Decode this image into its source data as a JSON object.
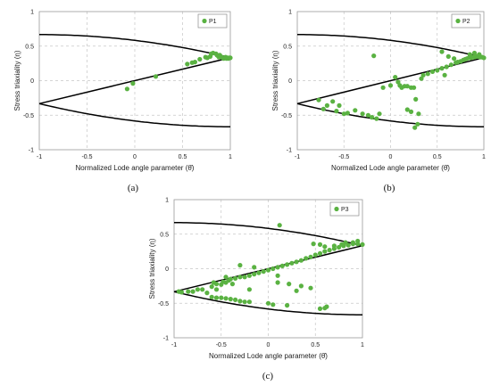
{
  "colors": {
    "marker": "#5ab242",
    "boundary": "#000000",
    "grid": "#c6c6c6",
    "frame": "#9a9a9a"
  },
  "chart_data": [
    {
      "type": "scatter",
      "caption": "(a)",
      "xlabel": "Normalized Lode angle parameter (θ̄)",
      "ylabel": "Stress triaxiality (η)",
      "xlim": [
        -1,
        1
      ],
      "ylim": [
        -1,
        1
      ],
      "xticks": [
        "-1",
        "-0.5",
        "0",
        "0.5",
        "1"
      ],
      "yticks": [
        "1",
        "0.5",
        "0",
        "-0.5",
        "-1"
      ],
      "grid": "dashed vertical and horizontal",
      "legend_position": "top-right",
      "series": [
        {
          "name": "P1",
          "points": [
            [
              -0.08,
              -0.12
            ],
            [
              -0.02,
              -0.04
            ],
            [
              0.22,
              0.06
            ],
            [
              0.55,
              0.24
            ],
            [
              0.6,
              0.26
            ],
            [
              0.63,
              0.27
            ],
            [
              0.68,
              0.31
            ],
            [
              0.74,
              0.34
            ],
            [
              0.76,
              0.33
            ],
            [
              0.79,
              0.35
            ],
            [
              0.8,
              0.39
            ],
            [
              0.82,
              0.4
            ],
            [
              0.85,
              0.39
            ],
            [
              0.86,
              0.37
            ],
            [
              0.87,
              0.36
            ],
            [
              0.88,
              0.34
            ],
            [
              0.89,
              0.37
            ],
            [
              0.9,
              0.35
            ],
            [
              0.91,
              0.34
            ],
            [
              0.92,
              0.33
            ],
            [
              0.93,
              0.32
            ],
            [
              0.94,
              0.33
            ],
            [
              0.95,
              0.34
            ],
            [
              0.96,
              0.32
            ],
            [
              0.97,
              0.33
            ],
            [
              0.98,
              0.32
            ],
            [
              0.99,
              0.33
            ],
            [
              1.0,
              0.33
            ]
          ]
        }
      ]
    },
    {
      "type": "scatter",
      "caption": "(b)",
      "xlabel": "Normalized Lode angle parameter (θ̄)",
      "ylabel": "Stress triaxiality (η)",
      "xlim": [
        -1,
        1
      ],
      "ylim": [
        -1,
        1
      ],
      "xticks": [
        "-1",
        "-0.5",
        "0",
        "0.5",
        "1"
      ],
      "yticks": [
        "1",
        "0.5",
        "0",
        "-0.5",
        "-1"
      ],
      "grid": "dashed vertical and horizontal",
      "legend_position": "top-right",
      "series": [
        {
          "name": "P2",
          "points": [
            [
              -0.77,
              -0.28
            ],
            [
              -0.72,
              -0.41
            ],
            [
              -0.68,
              -0.36
            ],
            [
              -0.62,
              -0.3
            ],
            [
              -0.58,
              -0.44
            ],
            [
              -0.55,
              -0.36
            ],
            [
              -0.5,
              -0.48
            ],
            [
              -0.46,
              -0.47
            ],
            [
              -0.38,
              -0.43
            ],
            [
              -0.3,
              -0.48
            ],
            [
              -0.24,
              -0.5
            ],
            [
              -0.2,
              -0.53
            ],
            [
              -0.15,
              -0.55
            ],
            [
              -0.12,
              -0.48
            ],
            [
              -0.18,
              0.36
            ],
            [
              -0.08,
              -0.1
            ],
            [
              0.0,
              -0.07
            ],
            [
              0.05,
              0.05
            ],
            [
              0.08,
              -0.02
            ],
            [
              0.1,
              -0.07
            ],
            [
              0.12,
              -0.1
            ],
            [
              0.15,
              -0.08
            ],
            [
              0.18,
              -0.08
            ],
            [
              0.22,
              -0.1
            ],
            [
              0.25,
              -0.1
            ],
            [
              0.27,
              -0.27
            ],
            [
              0.3,
              -0.48
            ],
            [
              0.26,
              -0.68
            ],
            [
              0.29,
              -0.63
            ],
            [
              0.33,
              0.03
            ],
            [
              0.22,
              -0.45
            ],
            [
              0.18,
              -0.42
            ],
            [
              0.35,
              0.08
            ],
            [
              0.4,
              0.1
            ],
            [
              0.45,
              0.13
            ],
            [
              0.5,
              0.15
            ],
            [
              0.55,
              0.18
            ],
            [
              0.6,
              0.2
            ],
            [
              0.65,
              0.23
            ],
            [
              0.7,
              0.26
            ],
            [
              0.72,
              0.27
            ],
            [
              0.75,
              0.28
            ],
            [
              0.78,
              0.3
            ],
            [
              0.8,
              0.31
            ],
            [
              0.82,
              0.32
            ],
            [
              0.84,
              0.33
            ],
            [
              0.86,
              0.33
            ],
            [
              0.88,
              0.34
            ],
            [
              0.9,
              0.34
            ],
            [
              0.92,
              0.35
            ],
            [
              0.94,
              0.35
            ],
            [
              0.96,
              0.34
            ],
            [
              0.98,
              0.34
            ],
            [
              1.0,
              0.33
            ],
            [
              0.85,
              0.38
            ],
            [
              0.9,
              0.4
            ],
            [
              0.95,
              0.38
            ],
            [
              0.62,
              0.35
            ],
            [
              0.68,
              0.32
            ],
            [
              0.55,
              0.42
            ],
            [
              0.58,
              0.08
            ]
          ]
        }
      ]
    },
    {
      "type": "scatter",
      "caption": "(c)",
      "xlabel": "Normalized Lode angle parameter (θ̄)",
      "ylabel": "Stress triaxiality (η)",
      "xlim": [
        -1,
        1
      ],
      "ylim": [
        -1,
        1
      ],
      "xticks": [
        "-1",
        "-0.5",
        "0",
        "0.5",
        "1"
      ],
      "yticks": [
        "1",
        "0.5",
        "0",
        "-0.5",
        "-1"
      ],
      "grid": "dashed vertical and horizontal",
      "legend_position": "top-right",
      "series": [
        {
          "name": "P3",
          "points": [
            [
              -0.95,
              -0.33
            ],
            [
              -0.92,
              -0.34
            ],
            [
              -0.85,
              -0.33
            ],
            [
              -0.8,
              -0.33
            ],
            [
              -0.75,
              -0.3
            ],
            [
              -0.7,
              -0.3
            ],
            [
              -0.65,
              -0.35
            ],
            [
              -0.6,
              -0.41
            ],
            [
              -0.55,
              -0.42
            ],
            [
              -0.5,
              -0.42
            ],
            [
              -0.45,
              -0.43
            ],
            [
              -0.4,
              -0.44
            ],
            [
              -0.35,
              -0.45
            ],
            [
              -0.3,
              -0.47
            ],
            [
              -0.25,
              -0.48
            ],
            [
              -0.2,
              -0.48
            ],
            [
              -0.58,
              -0.2
            ],
            [
              -0.55,
              -0.22
            ],
            [
              -0.5,
              -0.23
            ],
            [
              -0.48,
              -0.19
            ],
            [
              -0.45,
              -0.2
            ],
            [
              -0.42,
              -0.17
            ],
            [
              -0.4,
              -0.15
            ],
            [
              -0.35,
              -0.14
            ],
            [
              -0.3,
              -0.12
            ],
            [
              -0.25,
              -0.12
            ],
            [
              -0.2,
              -0.1
            ],
            [
              -0.15,
              -0.08
            ],
            [
              -0.1,
              -0.06
            ],
            [
              -0.05,
              -0.04
            ],
            [
              0.0,
              -0.02
            ],
            [
              0.05,
              0.0
            ],
            [
              0.1,
              0.02
            ],
            [
              0.15,
              0.04
            ],
            [
              0.2,
              0.06
            ],
            [
              0.25,
              0.08
            ],
            [
              0.3,
              0.1
            ],
            [
              0.35,
              0.12
            ],
            [
              0.4,
              0.15
            ],
            [
              0.45,
              0.17
            ],
            [
              0.5,
              0.2
            ],
            [
              0.55,
              0.22
            ],
            [
              0.6,
              0.25
            ],
            [
              0.65,
              0.27
            ],
            [
              0.7,
              0.29
            ],
            [
              0.75,
              0.31
            ],
            [
              0.8,
              0.33
            ],
            [
              0.85,
              0.34
            ],
            [
              0.9,
              0.36
            ],
            [
              0.95,
              0.36
            ],
            [
              1.0,
              0.35
            ],
            [
              0.9,
              0.38
            ],
            [
              0.95,
              0.4
            ],
            [
              0.82,
              0.38
            ],
            [
              0.78,
              0.35
            ],
            [
              0.7,
              0.33
            ],
            [
              0.6,
              0.32
            ],
            [
              0.55,
              0.35
            ],
            [
              0.48,
              0.36
            ],
            [
              0.12,
              0.63
            ],
            [
              -0.6,
              -0.26
            ],
            [
              -0.55,
              -0.3
            ],
            [
              -0.45,
              -0.12
            ],
            [
              -0.38,
              -0.22
            ],
            [
              -0.3,
              0.05
            ],
            [
              -0.15,
              0.02
            ],
            [
              0.1,
              -0.1
            ],
            [
              0.22,
              -0.22
            ],
            [
              0.3,
              -0.32
            ],
            [
              0.35,
              -0.25
            ],
            [
              0.45,
              -0.28
            ],
            [
              0.0,
              -0.5
            ],
            [
              0.05,
              -0.52
            ],
            [
              0.2,
              -0.53
            ],
            [
              0.55,
              -0.58
            ],
            [
              0.6,
              -0.57
            ],
            [
              0.62,
              -0.55
            ],
            [
              0.1,
              -0.2
            ],
            [
              -0.2,
              -0.3
            ]
          ]
        }
      ]
    }
  ]
}
